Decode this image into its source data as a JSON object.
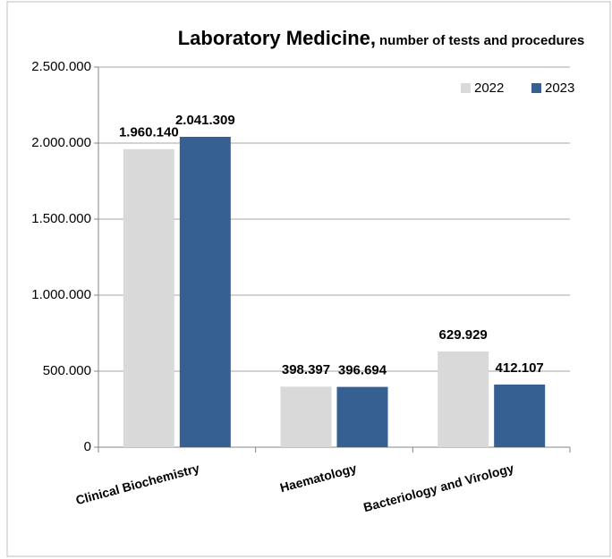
{
  "chart_data": {
    "type": "bar",
    "title": "Laboratory Medicine,",
    "subtitle": "number of tests and procedures",
    "categories": [
      "Clinical Biochemistry",
      "Haematology",
      "Bacteriology and Virology"
    ],
    "series": [
      {
        "name": "2022",
        "color": "#d9d9d9",
        "values": [
          1960140,
          398397,
          629929
        ],
        "value_labels": [
          "1.960.140",
          "398.397",
          "629.929"
        ]
      },
      {
        "name": "2023",
        "color": "#376092",
        "values": [
          2041309,
          396694,
          412107
        ],
        "value_labels": [
          "2.041.309",
          "396.694",
          "412.107"
        ]
      }
    ],
    "ylim": [
      0,
      2500000
    ],
    "yticks": [
      0,
      {
        "value": 500000,
        "label": "500.000"
      },
      {
        "value": 1000000,
        "label": "1.000.000"
      },
      {
        "value": 1500000,
        "label": "1.500.000"
      },
      {
        "value": 2000000,
        "label": "2.000.000"
      },
      {
        "value": 2500000,
        "label": "2.500.000"
      }
    ],
    "grid": true,
    "legend": "top-right"
  }
}
